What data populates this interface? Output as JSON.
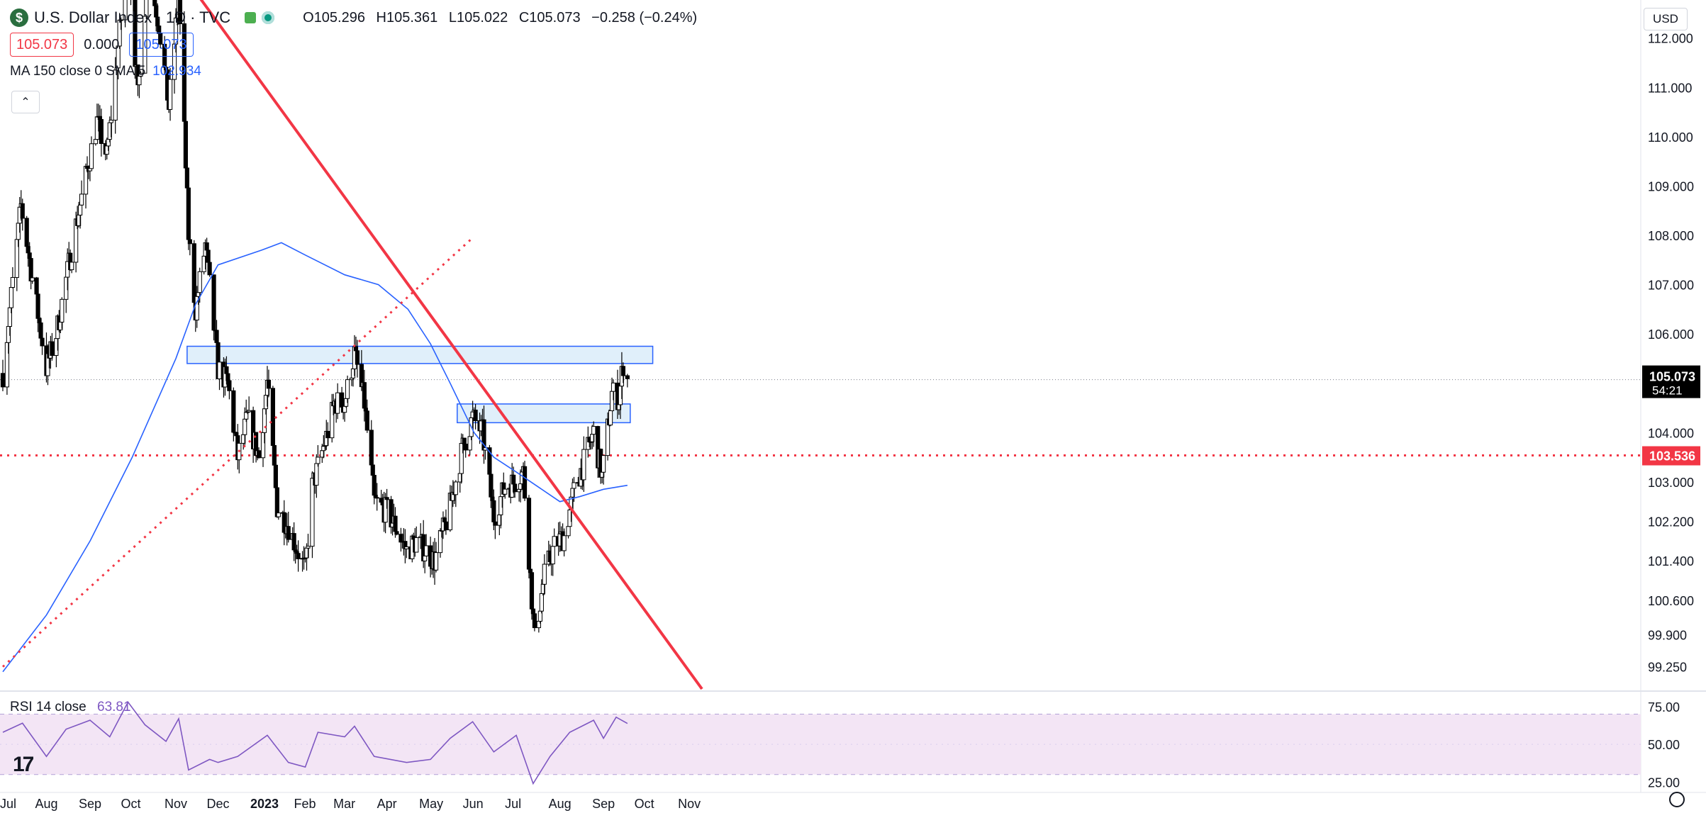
{
  "header": {
    "symbol_badge": "$",
    "title": "U.S. Dollar Index · 1D · TVC",
    "ohlc": {
      "o_label": "O",
      "o": "105.296",
      "h_label": "H",
      "h": "105.361",
      "l_label": "L",
      "l": "105.022",
      "c_label": "C",
      "c": "105.073",
      "change": "−0.258 (−0.24%)"
    },
    "bid": "105.073",
    "spread": "0.000",
    "ask": "105.073",
    "ma_label": "MA 150 close 0 SMA 5",
    "ma_value": "102.934",
    "rsi_label": "RSI 14 close",
    "rsi_value": "63.81",
    "currency": "USD",
    "icons": [
      "dollar-icon",
      "market-open-icon",
      "live-dot-icon",
      "chevron-up-icon",
      "tradingview-logo-icon",
      "settings-icon"
    ]
  },
  "colors": {
    "up": "#ffffff",
    "down": "#000000",
    "ma": "#2962ff",
    "trendline": "#f23645",
    "rsi": "#7e57c2",
    "rsi_band": "#f3e5f5",
    "zone_fill": "#d6e9f8",
    "zone_border": "#2962ff"
  },
  "chart_data": {
    "type": "candlestick",
    "price_axis": {
      "ticks": [
        "112.000",
        "111.000",
        "110.000",
        "109.000",
        "108.000",
        "107.000",
        "106.000",
        "104.000",
        "103.000",
        "102.200",
        "101.400",
        "100.600",
        "99.900",
        "99.250"
      ],
      "current_price": "105.073",
      "countdown": "54:21",
      "level_label": "103.536",
      "range": [
        98.8,
        112.6
      ]
    },
    "time_axis": {
      "labels": [
        "Jul",
        "Aug",
        "Sep",
        "Oct",
        "Nov",
        "Dec",
        "2023",
        "Feb",
        "Mar",
        "Apr",
        "May",
        "Jun",
        "Jul",
        "Aug",
        "Sep",
        "Oct",
        "Nov"
      ],
      "start": "2022-07-01"
    },
    "ohlc_path": [
      [
        "2022-07-01",
        105.2
      ],
      [
        "2022-07-14",
        108.6
      ],
      [
        "2022-08-01",
        105.3
      ],
      [
        "2022-08-08",
        106.0
      ],
      [
        "2022-08-22",
        108.2
      ],
      [
        "2022-09-06",
        110.3
      ],
      [
        "2022-09-13",
        109.6
      ],
      [
        "2022-09-28",
        113.8
      ],
      [
        "2022-10-05",
        110.8
      ],
      [
        "2022-10-12",
        113.4
      ],
      [
        "2022-10-20",
        112.3
      ],
      [
        "2022-10-27",
        110.6
      ],
      [
        "2022-11-03",
        112.9
      ],
      [
        "2022-11-10",
        108.0
      ],
      [
        "2022-11-15",
        106.5
      ],
      [
        "2022-11-22",
        107.8
      ],
      [
        "2022-12-01",
        105.3
      ],
      [
        "2022-12-08",
        105.0
      ],
      [
        "2022-12-15",
        103.5
      ],
      [
        "2022-12-22",
        104.3
      ],
      [
        "2022-12-30",
        103.5
      ],
      [
        "2023-01-05",
        105.0
      ],
      [
        "2023-01-12",
        102.5
      ],
      [
        "2023-01-20",
        102.1
      ],
      [
        "2023-02-01",
        101.2
      ],
      [
        "2023-02-06",
        102.9
      ],
      [
        "2023-02-15",
        103.8
      ],
      [
        "2023-02-22",
        104.6
      ],
      [
        "2023-03-01",
        104.6
      ],
      [
        "2023-03-08",
        105.6
      ],
      [
        "2023-03-15",
        104.6
      ],
      [
        "2023-03-22",
        102.6
      ],
      [
        "2023-03-31",
        102.4
      ],
      [
        "2023-04-06",
        102.1
      ],
      [
        "2023-04-14",
        101.6
      ],
      [
        "2023-04-21",
        101.8
      ],
      [
        "2023-05-01",
        101.5
      ],
      [
        "2023-05-04",
        101.4
      ],
      [
        "2023-05-15",
        102.5
      ],
      [
        "2023-05-24",
        103.7
      ],
      [
        "2023-05-31",
        104.3
      ],
      [
        "2023-06-07",
        104.0
      ],
      [
        "2023-06-15",
        102.3
      ],
      [
        "2023-06-23",
        102.9
      ],
      [
        "2023-06-30",
        103.0
      ],
      [
        "2023-07-06",
        103.2
      ],
      [
        "2023-07-14",
        99.8
      ],
      [
        "2023-07-21",
        101.1
      ],
      [
        "2023-07-28",
        101.7
      ],
      [
        "2023-08-04",
        101.9
      ],
      [
        "2023-08-11",
        102.8
      ],
      [
        "2023-08-18",
        103.4
      ],
      [
        "2023-08-25",
        104.0
      ],
      [
        "2023-08-31",
        103.1
      ],
      [
        "2023-09-07",
        104.8
      ],
      [
        "2023-09-12",
        104.7
      ],
      [
        "2023-09-15",
        105.4
      ],
      [
        "2023-09-18",
        105.07
      ]
    ],
    "ma150": [
      [
        "2022-07-01",
        99.15
      ],
      [
        "2022-08-01",
        100.3
      ],
      [
        "2022-09-01",
        101.8
      ],
      [
        "2022-10-01",
        103.5
      ],
      [
        "2022-11-01",
        105.5
      ],
      [
        "2022-11-15",
        106.6
      ],
      [
        "2022-12-01",
        107.4
      ],
      [
        "2023-01-01",
        107.7
      ],
      [
        "2023-01-15",
        107.85
      ],
      [
        "2023-02-01",
        107.6
      ],
      [
        "2023-03-01",
        107.2
      ],
      [
        "2023-03-25",
        107.0
      ],
      [
        "2023-04-15",
        106.5
      ],
      [
        "2023-05-01",
        105.8
      ],
      [
        "2023-05-15",
        105.0
      ],
      [
        "2023-06-01",
        104.0
      ],
      [
        "2023-06-15",
        103.5
      ],
      [
        "2023-07-01",
        103.2
      ],
      [
        "2023-08-01",
        102.6
      ],
      [
        "2023-08-15",
        102.7
      ],
      [
        "2023-09-01",
        102.85
      ],
      [
        "2023-09-18",
        102.93
      ]
    ],
    "trend_lines": [
      {
        "style": "solid",
        "from": [
          "2022-10-24",
          113.8
        ],
        "to": [
          "2023-11-10",
          98.8
        ]
      },
      {
        "style": "dotted",
        "from": [
          "2022-07-01",
          99.25
        ],
        "to": [
          "2023-05-31",
          107.95
        ]
      }
    ],
    "horizontal_line": {
      "style": "dotted",
      "price": 103.536
    },
    "zones": [
      {
        "from": "2022-11-09",
        "to": "2023-10-06",
        "low": 105.4,
        "high": 105.75
      },
      {
        "from": "2023-05-20",
        "to": "2023-09-20",
        "low": 104.2,
        "high": 104.58
      }
    ],
    "rsi": {
      "ticks": [
        "75.00",
        "50.00",
        "25.00"
      ],
      "range": [
        20,
        82
      ],
      "upper": 70,
      "lower": 30,
      "path": [
        [
          "2022-07-01",
          58
        ],
        [
          "2022-07-15",
          64
        ],
        [
          "2022-08-01",
          42
        ],
        [
          "2022-08-15",
          60
        ],
        [
          "2022-09-01",
          66
        ],
        [
          "2022-09-15",
          55
        ],
        [
          "2022-09-28",
          78
        ],
        [
          "2022-10-10",
          63
        ],
        [
          "2022-10-25",
          52
        ],
        [
          "2022-11-03",
          67
        ],
        [
          "2022-11-10",
          33
        ],
        [
          "2022-11-25",
          40
        ],
        [
          "2022-12-01",
          38
        ],
        [
          "2022-12-15",
          42
        ],
        [
          "2023-01-05",
          56
        ],
        [
          "2023-01-20",
          38
        ],
        [
          "2023-02-01",
          35
        ],
        [
          "2023-02-10",
          58
        ],
        [
          "2023-03-01",
          55
        ],
        [
          "2023-03-08",
          62
        ],
        [
          "2023-03-22",
          42
        ],
        [
          "2023-04-14",
          38
        ],
        [
          "2023-05-01",
          40
        ],
        [
          "2023-05-15",
          54
        ],
        [
          "2023-05-31",
          65
        ],
        [
          "2023-06-15",
          45
        ],
        [
          "2023-07-01",
          56
        ],
        [
          "2023-07-13",
          24
        ],
        [
          "2023-07-25",
          42
        ],
        [
          "2023-08-08",
          58
        ],
        [
          "2023-08-25",
          66
        ],
        [
          "2023-09-01",
          54
        ],
        [
          "2023-09-10",
          68
        ],
        [
          "2023-09-18",
          63.81
        ]
      ]
    }
  }
}
